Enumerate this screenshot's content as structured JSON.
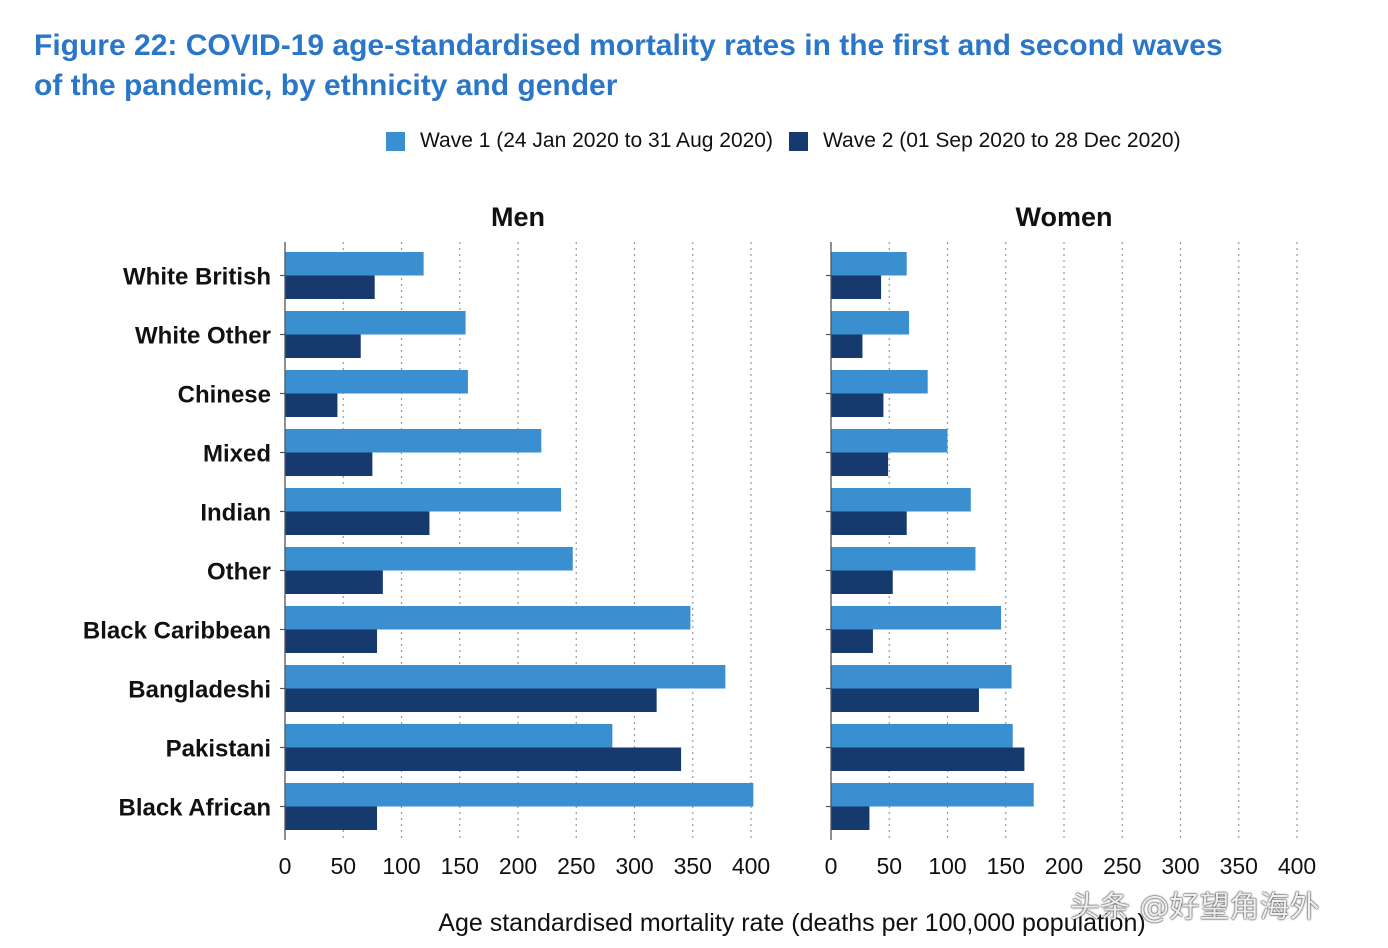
{
  "title": {
    "line1": "Figure 22: COVID-19 age-standardised mortality rates in the first and second waves",
    "line2": "of the pandemic, by ethnicity and gender"
  },
  "colors": {
    "wave1": "#3a8fd0",
    "wave2": "#163a6e",
    "title": "#2a76c9"
  },
  "legend": {
    "wave1": "Wave 1 (24 Jan 2020 to 31 Aug 2020)",
    "wave2": "Wave 2 (01 Sep 2020 to 28 Dec 2020)"
  },
  "x_axis_label": "Age standardised mortality rate (deaths per 100,000 population)",
  "watermark": "头条 @好望角海外",
  "chart_data": [
    {
      "type": "bar",
      "orientation": "horizontal",
      "title": "Men",
      "categories": [
        "White British",
        "White Other",
        "Chinese",
        "Mixed",
        "Indian",
        "Other",
        "Black Caribbean",
        "Bangladeshi",
        "Pakistani",
        "Black African"
      ],
      "series": [
        {
          "name": "Wave 1 (24 Jan 2020 to 31 Aug 2020)",
          "values": [
            119,
            155,
            157,
            220,
            237,
            247,
            348,
            378,
            281,
            402
          ]
        },
        {
          "name": "Wave 2 (01 Sep 2020 to 28 Dec 2020)",
          "values": [
            77,
            65,
            45,
            75,
            124,
            84,
            79,
            319,
            340,
            79
          ]
        }
      ],
      "xlim": [
        0,
        400
      ],
      "xticks": [
        0,
        50,
        100,
        150,
        200,
        250,
        300,
        350,
        400
      ],
      "grid": true
    },
    {
      "type": "bar",
      "orientation": "horizontal",
      "title": "Women",
      "categories": [
        "White British",
        "White Other",
        "Chinese",
        "Mixed",
        "Indian",
        "Other",
        "Black Caribbean",
        "Bangladeshi",
        "Pakistani",
        "Black African"
      ],
      "series": [
        {
          "name": "Wave 1 (24 Jan 2020 to 31 Aug 2020)",
          "values": [
            65,
            67,
            83,
            100,
            120,
            124,
            146,
            155,
            156,
            174
          ]
        },
        {
          "name": "Wave 2 (01 Sep 2020 to 28 Dec 2020)",
          "values": [
            43,
            27,
            45,
            49,
            65,
            53,
            36,
            127,
            166,
            33
          ]
        }
      ],
      "xlim": [
        0,
        400
      ],
      "xticks": [
        0,
        50,
        100,
        150,
        200,
        250,
        300,
        350,
        400
      ],
      "grid": true
    }
  ]
}
